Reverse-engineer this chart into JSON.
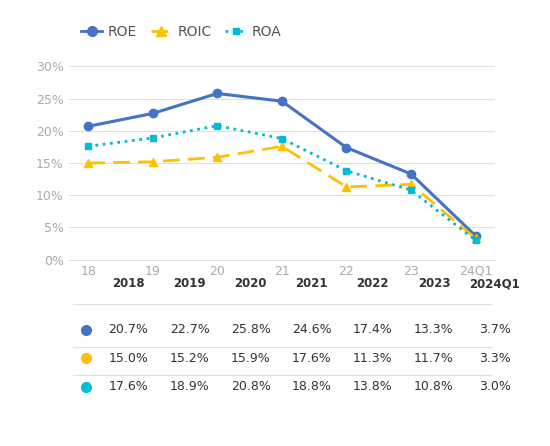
{
  "x_labels": [
    "18",
    "19",
    "20",
    "21",
    "22",
    "23",
    "24Q1"
  ],
  "x_values": [
    0,
    1,
    2,
    3,
    4,
    5,
    6
  ],
  "ROE": [
    20.7,
    22.7,
    25.8,
    24.6,
    17.4,
    13.3,
    3.7
  ],
  "ROIC": [
    15.0,
    15.2,
    15.9,
    17.6,
    11.3,
    11.7,
    3.3
  ],
  "ROA": [
    17.6,
    18.9,
    20.8,
    18.8,
    13.8,
    10.8,
    3.0
  ],
  "ROE_color": "#4472C4",
  "ROIC_color": "#FFC000",
  "ROA_color": "#00BCD4",
  "ylim": [
    0,
    32
  ],
  "yticks": [
    0,
    5,
    10,
    15,
    20,
    25,
    30
  ],
  "ytick_labels": [
    "0%",
    "5%",
    "10%",
    "15%",
    "20%",
    "25%",
    "30%"
  ],
  "background_color": "#ffffff",
  "table_years": [
    "2018",
    "2019",
    "2020",
    "2021",
    "2022",
    "2023",
    "2024Q1"
  ],
  "table_ROE": [
    "20.7%",
    "22.7%",
    "25.8%",
    "24.6%",
    "17.4%",
    "13.3%",
    "3.7%"
  ],
  "table_ROIC": [
    "15.0%",
    "15.2%",
    "15.9%",
    "17.6%",
    "11.3%",
    "11.7%",
    "3.3%"
  ],
  "table_ROA": [
    "17.6%",
    "18.9%",
    "20.8%",
    "18.8%",
    "13.8%",
    "10.8%",
    "3.0%"
  ]
}
